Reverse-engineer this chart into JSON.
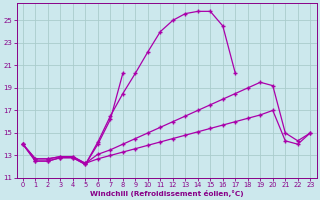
{
  "background_color": "#cce8ed",
  "grid_color": "#aacccc",
  "line_color": "#aa00aa",
  "xlabel": "Windchill (Refroidissement éolien,°C)",
  "xlim": [
    -0.5,
    23.5
  ],
  "ylim": [
    11,
    26.5
  ],
  "yticks": [
    11,
    13,
    15,
    17,
    19,
    21,
    23,
    25
  ],
  "xticks": [
    0,
    1,
    2,
    3,
    4,
    5,
    6,
    7,
    8,
    9,
    10,
    11,
    12,
    13,
    14,
    15,
    16,
    17,
    18,
    19,
    20,
    21,
    22,
    23
  ],
  "series": [
    {
      "x": [
        0,
        1,
        2,
        3,
        4,
        5,
        6,
        7,
        8,
        9,
        10,
        11,
        12,
        13,
        14,
        15,
        16,
        17
      ],
      "y": [
        14.0,
        12.5,
        12.5,
        12.8,
        12.8,
        12.2,
        14.2,
        16.5,
        18.5,
        20.3,
        22.2,
        24.0,
        25.0,
        25.6,
        25.8,
        25.8,
        24.5,
        20.3
      ]
    },
    {
      "x": [
        0,
        1,
        2,
        3,
        4,
        5,
        6,
        7,
        8
      ],
      "y": [
        14.0,
        12.5,
        12.5,
        12.8,
        12.8,
        12.2,
        14.0,
        16.2,
        20.3
      ]
    },
    {
      "x": [
        0,
        1,
        2,
        3,
        4,
        5,
        6,
        7,
        8,
        9,
        10,
        11,
        12,
        13,
        14,
        15,
        16,
        17,
        18,
        19,
        20,
        21,
        22,
        23
      ],
      "y": [
        14.0,
        12.7,
        12.7,
        12.9,
        12.9,
        12.3,
        12.7,
        13.0,
        13.3,
        13.6,
        13.9,
        14.2,
        14.5,
        14.8,
        15.1,
        15.4,
        15.7,
        16.0,
        16.3,
        16.6,
        17.0,
        14.3,
        14.0,
        15.0
      ]
    },
    {
      "x": [
        0,
        1,
        2,
        3,
        4,
        5,
        6,
        7,
        8,
        9,
        10,
        11,
        12,
        13,
        14,
        15,
        16,
        17,
        18,
        19,
        20,
        21,
        22,
        23
      ],
      "y": [
        14.0,
        12.7,
        12.7,
        12.9,
        12.9,
        12.3,
        13.1,
        13.5,
        14.0,
        14.5,
        15.0,
        15.5,
        16.0,
        16.5,
        17.0,
        17.5,
        18.0,
        18.5,
        19.0,
        19.5,
        19.2,
        15.0,
        14.3,
        15.0
      ]
    }
  ]
}
